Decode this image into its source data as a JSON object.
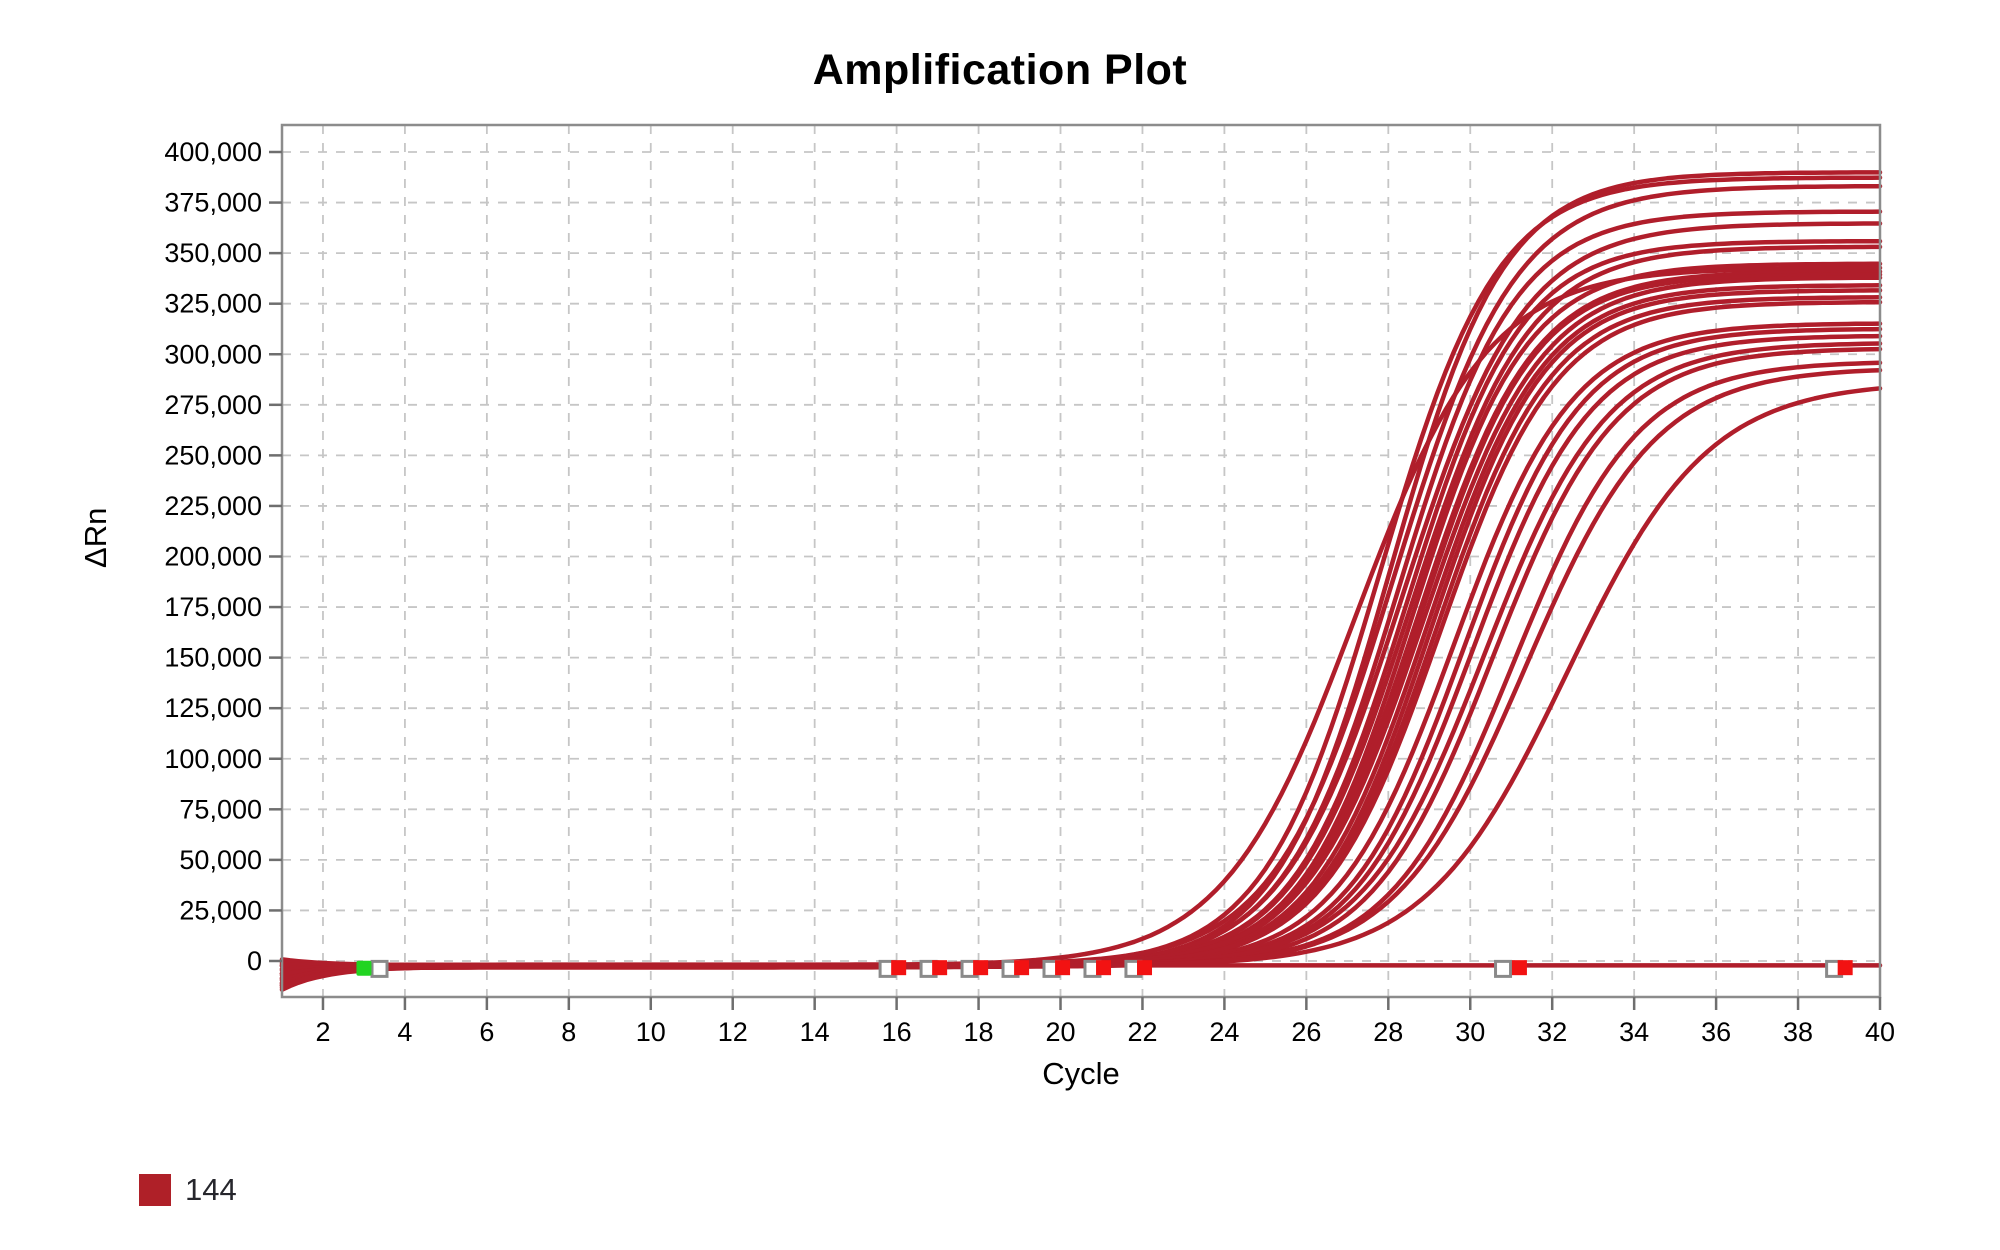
{
  "title": "Amplification Plot",
  "legend": {
    "items": [
      {
        "label": "144",
        "color": "#AF2028"
      }
    ]
  },
  "colors": {
    "curve": "#B01E2B",
    "marker_red": "#F21212",
    "marker_green": "#22D422",
    "marker_gray_border": "#8A8A8A",
    "grid": "#C6C6C6",
    "plot_border": "#8C8C8C",
    "tick": "#6E6E6E",
    "text": "#000000"
  },
  "chart_data": {
    "type": "line",
    "title": "Amplification Plot",
    "xlabel": "Cycle",
    "ylabel": "ΔRn",
    "x_range": [
      1,
      40
    ],
    "y_range": [
      -18000,
      414000
    ],
    "grid": true,
    "legend_position": "bottom-left",
    "xticks": [
      2,
      4,
      6,
      8,
      10,
      12,
      14,
      16,
      18,
      20,
      22,
      24,
      26,
      28,
      30,
      32,
      34,
      36,
      38,
      40
    ],
    "yticks": [
      {
        "value": 0,
        "label": "0"
      },
      {
        "value": 25000,
        "label": "25,000"
      },
      {
        "value": 50000,
        "label": "50,000"
      },
      {
        "value": 75000,
        "label": "75,000"
      },
      {
        "value": 100000,
        "label": "100,000"
      },
      {
        "value": 125000,
        "label": "125,000"
      },
      {
        "value": 150000,
        "label": "150,000"
      },
      {
        "value": 175000,
        "label": "175,000"
      },
      {
        "value": 200000,
        "label": "200,000"
      },
      {
        "value": 225000,
        "label": "225,000"
      },
      {
        "value": 250000,
        "label": "250,000"
      },
      {
        "value": 275000,
        "label": "275,000"
      },
      {
        "value": 300000,
        "label": "300,000"
      },
      {
        "value": 325000,
        "label": "325,000"
      },
      {
        "value": 350000,
        "label": "350,000"
      },
      {
        "value": 375000,
        "label": "375,000"
      },
      {
        "value": 400000,
        "label": "400,000"
      }
    ],
    "series_model": "y(x) = baseline + start_offset*exp(-(x-1)/1.1) + plateau / (1 + exp(-rate*(x - midpoint)))",
    "series": [
      {
        "name": "144",
        "midpoint": 27.2,
        "rate": 0.62,
        "plateau": 345000,
        "start_offset": 3000,
        "baseline": -2200
      },
      {
        "name": "144",
        "midpoint": 27.8,
        "rate": 0.7,
        "plateau": 390000,
        "start_offset": 1800,
        "baseline": -2600
      },
      {
        "name": "144",
        "midpoint": 28.05,
        "rate": 0.72,
        "plateau": 393000,
        "start_offset": 600,
        "baseline": -3000
      },
      {
        "name": "144",
        "midpoint": 28.15,
        "rate": 0.68,
        "plateau": 385000,
        "start_offset": -600,
        "baseline": -1800
      },
      {
        "name": "144",
        "midpoint": 28.25,
        "rate": 0.71,
        "plateau": 373000,
        "start_offset": -1800,
        "baseline": -2400
      },
      {
        "name": "144",
        "midpoint": 28.35,
        "rate": 0.68,
        "plateau": 368000,
        "start_offset": -3000,
        "baseline": -3200
      },
      {
        "name": "144",
        "midpoint": 28.45,
        "rate": 0.72,
        "plateau": 358000,
        "start_offset": -4200,
        "baseline": -2000
      },
      {
        "name": "144",
        "midpoint": 28.55,
        "rate": 0.7,
        "plateau": 356000,
        "start_offset": -5400,
        "baseline": -2800
      },
      {
        "name": "144",
        "midpoint": 28.6,
        "rate": 0.73,
        "plateau": 347000,
        "start_offset": -6600,
        "baseline": -2200
      },
      {
        "name": "144",
        "midpoint": 28.7,
        "rate": 0.71,
        "plateau": 344000,
        "start_offset": -7800,
        "baseline": -3000
      },
      {
        "name": "144",
        "midpoint": 28.75,
        "rate": 0.72,
        "plateau": 342000,
        "start_offset": -9000,
        "baseline": -2500
      },
      {
        "name": "144",
        "midpoint": 28.85,
        "rate": 0.7,
        "plateau": 340000,
        "start_offset": -10200,
        "baseline": -2000
      },
      {
        "name": "144",
        "midpoint": 28.95,
        "rate": 0.71,
        "plateau": 337000,
        "start_offset": -11400,
        "baseline": -2800
      },
      {
        "name": "144",
        "midpoint": 29.05,
        "rate": 0.72,
        "plateau": 334000,
        "start_offset": 2400,
        "baseline": -2300
      },
      {
        "name": "144",
        "midpoint": 29.15,
        "rate": 0.71,
        "plateau": 331000,
        "start_offset": 1200,
        "baseline": -2700
      },
      {
        "name": "144",
        "midpoint": 29.25,
        "rate": 0.7,
        "plateau": 328000,
        "start_offset": 0,
        "baseline": -2100
      },
      {
        "name": "144",
        "midpoint": 29.6,
        "rate": 0.69,
        "plateau": 318000,
        "start_offset": -1200,
        "baseline": -2600
      },
      {
        "name": "144",
        "midpoint": 29.85,
        "rate": 0.7,
        "plateau": 315000,
        "start_offset": -2400,
        "baseline": -2300
      },
      {
        "name": "144",
        "midpoint": 30.05,
        "rate": 0.69,
        "plateau": 312000,
        "start_offset": -3600,
        "baseline": -2700
      },
      {
        "name": "144",
        "midpoint": 30.35,
        "rate": 0.67,
        "plateau": 308000,
        "start_offset": -4800,
        "baseline": -2200
      },
      {
        "name": "144",
        "midpoint": 30.55,
        "rate": 0.67,
        "plateau": 306000,
        "start_offset": -6000,
        "baseline": -2900
      },
      {
        "name": "144",
        "midpoint": 31.05,
        "rate": 0.66,
        "plateau": 299000,
        "start_offset": -7200,
        "baseline": -2400
      },
      {
        "name": "144",
        "midpoint": 31.35,
        "rate": 0.63,
        "plateau": 296000,
        "start_offset": -8400,
        "baseline": -2600
      },
      {
        "name": "144",
        "midpoint": 32.35,
        "rate": 0.58,
        "plateau": 289000,
        "start_offset": -9600,
        "baseline": -2500
      },
      {
        "name": "144",
        "midpoint": 0,
        "rate": 1,
        "plateau": 0,
        "start_offset": -11000,
        "baseline": -2200
      }
    ],
    "markers": [
      {
        "cycle": 3.38,
        "value": -3900,
        "type": "gray"
      },
      {
        "cycle": 15.78,
        "value": -3900,
        "type": "gray"
      },
      {
        "cycle": 16.78,
        "value": -3900,
        "type": "gray"
      },
      {
        "cycle": 17.78,
        "value": -3900,
        "type": "gray"
      },
      {
        "cycle": 18.78,
        "value": -3900,
        "type": "gray"
      },
      {
        "cycle": 19.78,
        "value": -3900,
        "type": "gray"
      },
      {
        "cycle": 20.78,
        "value": -3900,
        "type": "gray"
      },
      {
        "cycle": 21.78,
        "value": -3900,
        "type": "gray"
      },
      {
        "cycle": 30.8,
        "value": -3900,
        "type": "gray"
      },
      {
        "cycle": 38.88,
        "value": -3900,
        "type": "gray"
      },
      {
        "cycle": 3.0,
        "value": -3600,
        "type": "green"
      },
      {
        "cycle": 16.05,
        "value": -3300,
        "type": "red"
      },
      {
        "cycle": 17.05,
        "value": -3300,
        "type": "red"
      },
      {
        "cycle": 18.05,
        "value": -3300,
        "type": "red"
      },
      {
        "cycle": 19.05,
        "value": -3300,
        "type": "red"
      },
      {
        "cycle": 20.05,
        "value": -3300,
        "type": "red"
      },
      {
        "cycle": 21.05,
        "value": -3300,
        "type": "red"
      },
      {
        "cycle": 22.05,
        "value": -3300,
        "type": "red"
      },
      {
        "cycle": 31.2,
        "value": -3300,
        "type": "red"
      },
      {
        "cycle": 39.15,
        "value": -3300,
        "type": "red"
      }
    ]
  }
}
